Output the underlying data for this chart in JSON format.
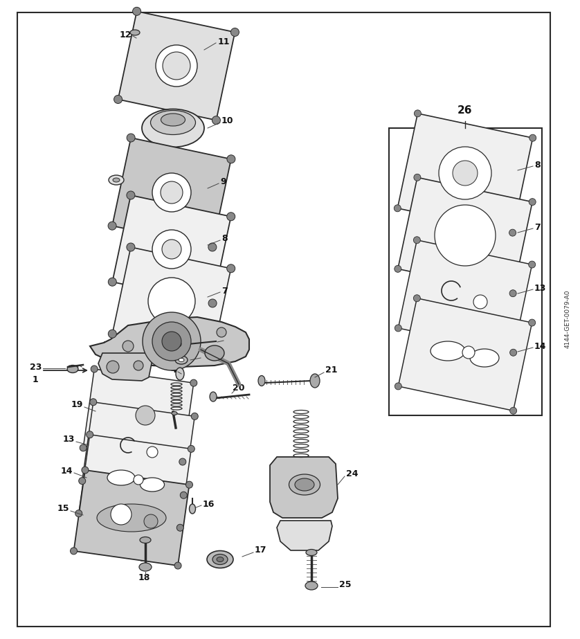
{
  "bg_color": "#ffffff",
  "fig_width": 8.38,
  "fig_height": 9.23,
  "watermark": "4144-GET-0079-A0",
  "line_color": "#2a2a2a",
  "fill_light": "#f0f0f0",
  "fill_mid": "#e0e0e0",
  "fill_dark": "#c8c8c8",
  "corner_dot": "#888888"
}
